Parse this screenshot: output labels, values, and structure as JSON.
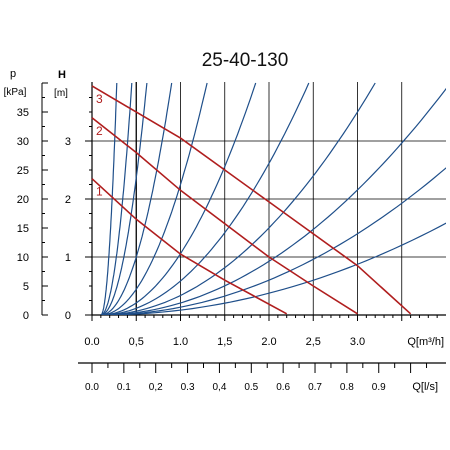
{
  "chart_data": {
    "type": "line",
    "title": "25-40-130",
    "pressure_axis": {
      "symbol": "p",
      "unit": "[kPa]",
      "ticks": [
        "0",
        "5",
        "10",
        "15",
        "20",
        "25",
        "30",
        "35"
      ],
      "range": [
        0,
        40
      ]
    },
    "head_axis": {
      "symbol": "H",
      "unit": "[m]",
      "ticks": [
        "0",
        "1",
        "2",
        "3"
      ],
      "range": [
        0,
        4
      ]
    },
    "flow_axis_m3h": {
      "label": "Q[m³/h]",
      "ticks": [
        "0.0",
        "0,5",
        "1.0",
        "1,5",
        "2.0",
        "2,5",
        "3.0"
      ],
      "tick_values": [
        0,
        0.5,
        1.0,
        1.5,
        2.0,
        2.5,
        3.0
      ],
      "range": [
        0,
        4
      ]
    },
    "flow_axis_ls": {
      "label": "Q[l/s]",
      "ticks": [
        "0.0",
        "0.1",
        "0,2",
        "0.3",
        "0,4",
        "0.5",
        "0.6",
        "0.7",
        "0.8",
        "0.9"
      ],
      "tick_values": [
        0,
        0.1,
        0.2,
        0.3,
        0.4,
        0.5,
        0.6,
        0.7,
        0.8,
        0.9
      ]
    },
    "grid": true,
    "pump_curves": [
      {
        "name": "1",
        "label_color": "#b01e1e",
        "points": [
          [
            0,
            2.35
          ],
          [
            0.5,
            1.65
          ],
          [
            1.0,
            1.05
          ],
          [
            1.5,
            0.6
          ],
          [
            2.2,
            0.02
          ]
        ]
      },
      {
        "name": "2",
        "label_color": "#b01e1e",
        "points": [
          [
            0,
            3.4
          ],
          [
            0.5,
            2.8
          ],
          [
            1.0,
            2.15
          ],
          [
            2.0,
            1.0
          ],
          [
            2.5,
            0.5
          ],
          [
            3.0,
            0.02
          ]
        ]
      },
      {
        "name": "3",
        "label_color": "#b01e1e",
        "points": [
          [
            0,
            3.95
          ],
          [
            1.0,
            3.05
          ],
          [
            2.0,
            1.95
          ],
          [
            3.0,
            0.85
          ],
          [
            3.6,
            0.02
          ]
        ]
      }
    ],
    "system_curve_flows_at_H4": [
      0.28,
      0.45,
      0.62,
      0.9,
      1.3,
      1.85,
      2.45,
      3.2,
      4.05,
      5.0,
      6.3
    ],
    "system_curve_flow_offset": 0.1,
    "colors": {
      "pump": "#b01e1e",
      "system": "#1f4f8a",
      "grid": "#000000",
      "axis": "#000000"
    }
  }
}
